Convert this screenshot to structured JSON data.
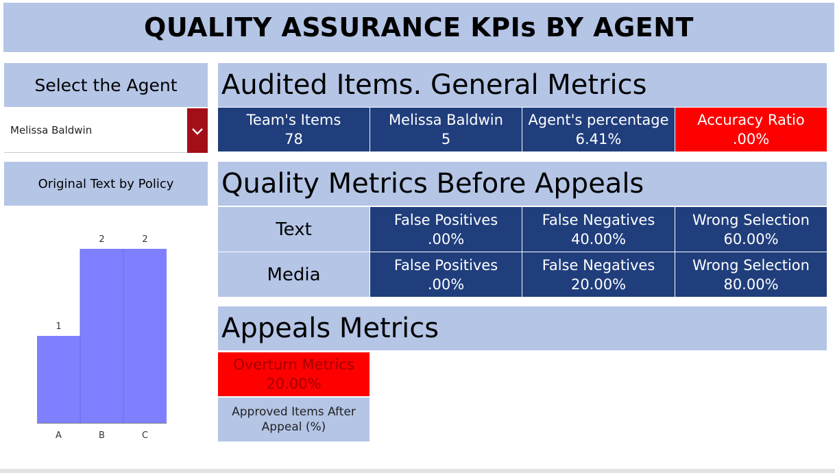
{
  "header": {
    "title": "QUALITY ASSURANCE KPIs BY AGENT"
  },
  "agent_selector": {
    "label": "Select the Agent",
    "selected": "Melissa Baldwin",
    "icon": "chevron-down-icon"
  },
  "policy_panel": {
    "title": "Original Text by Policy"
  },
  "chart_data": {
    "type": "bar",
    "categories": [
      "A",
      "B",
      "C"
    ],
    "values": [
      1,
      2,
      2
    ],
    "ylim": [
      0,
      2
    ],
    "grid": false,
    "bar_color": "#7e80ff"
  },
  "audited": {
    "title": "Audited Items. General Metrics",
    "kpis": [
      {
        "label": "Team's Items",
        "value": "78"
      },
      {
        "label": "Melissa Baldwin",
        "value": "5"
      },
      {
        "label": "Agent's percentage",
        "value": "6.41%"
      },
      {
        "label": "Accuracy Ratio",
        "value": ".00%"
      }
    ]
  },
  "quality": {
    "title": "Quality Metrics Before Appeals",
    "rows": [
      {
        "label": "Text",
        "cells": [
          {
            "label": "False Positives",
            "value": ".00%"
          },
          {
            "label": "False Negatives",
            "value": "40.00%"
          },
          {
            "label": "Wrong Selection",
            "value": "60.00%"
          }
        ]
      },
      {
        "label": "Media",
        "cells": [
          {
            "label": "False Positives",
            "value": ".00%"
          },
          {
            "label": "False Negatives",
            "value": "20.00%"
          },
          {
            "label": "Wrong Selection",
            "value": "80.00%"
          }
        ]
      }
    ]
  },
  "appeals": {
    "title": "Appeals Metrics",
    "overturn": {
      "label": "Overturn Metrics",
      "value": "20.00%"
    },
    "approved": {
      "label": "Approved Items After Appeal (%)"
    }
  },
  "colors": {
    "light": "#b4c5e6",
    "dark": "#203e7c",
    "alert": "#fe0000",
    "alert_text": "#a40000",
    "dropdown_button": "#a30f19"
  }
}
